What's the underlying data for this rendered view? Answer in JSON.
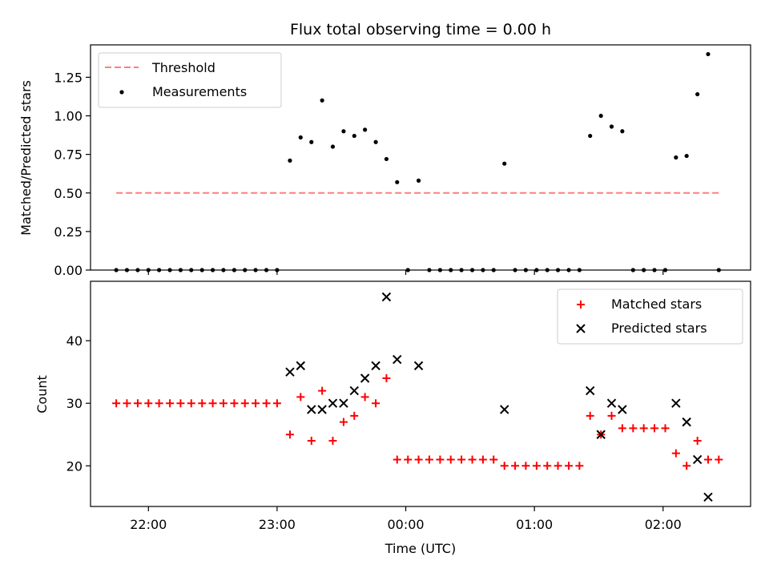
{
  "chart_data": [
    {
      "type": "scatter",
      "title": "Flux total observing time = 0.00 h",
      "xlabel": "",
      "ylabel": "Matched/Predicted stars",
      "xlim_hours": [
        21.55,
        26.68
      ],
      "ylim": [
        0,
        1.46
      ],
      "yticks": [
        0.0,
        0.25,
        0.5,
        0.75,
        1.0,
        1.25
      ],
      "ytick_labels": [
        "0.00",
        "0.25",
        "0.50",
        "0.75",
        "1.00",
        "1.25"
      ],
      "grid": false,
      "legend_position": "top-left",
      "series": [
        {
          "name": "Threshold",
          "kind": "dashed-line",
          "color": "#ff7f7f",
          "x": [
            21.75,
            26.45
          ],
          "y": [
            0.5,
            0.5
          ]
        },
        {
          "name": "Measurements",
          "kind": "points",
          "color": "#000000",
          "x": [
            21.75,
            21.833,
            21.917,
            22.0,
            22.083,
            22.167,
            22.25,
            22.333,
            22.417,
            22.5,
            22.583,
            22.667,
            22.75,
            22.833,
            22.917,
            23.0,
            23.1,
            23.183,
            23.267,
            23.35,
            23.433,
            23.517,
            23.6,
            23.683,
            23.767,
            23.85,
            23.933,
            24.017,
            24.1,
            24.183,
            24.267,
            24.35,
            24.433,
            24.517,
            24.6,
            24.683,
            24.767,
            24.85,
            24.933,
            25.017,
            25.1,
            25.183,
            25.267,
            25.35,
            25.433,
            25.517,
            25.6,
            25.683,
            25.767,
            25.85,
            25.933,
            26.017,
            26.1,
            26.183,
            26.267,
            26.35,
            26.433
          ],
          "y": [
            0,
            0,
            0,
            0,
            0,
            0,
            0,
            0,
            0,
            0,
            0,
            0,
            0,
            0,
            0,
            0,
            0.71,
            0.86,
            0.83,
            1.1,
            0.8,
            0.9,
            0.87,
            0.91,
            0.83,
            0.72,
            0.57,
            0,
            0.58,
            0,
            0,
            0,
            0,
            0,
            0,
            0,
            0.69,
            0,
            0,
            0,
            0,
            0,
            0,
            0,
            0.87,
            1.0,
            0.93,
            0.9,
            0,
            0,
            0,
            0,
            0.73,
            0.74,
            1.14,
            1.4,
            0
          ]
        }
      ]
    },
    {
      "type": "scatter",
      "title": "",
      "xlabel": "Time (UTC)",
      "ylabel": "Count",
      "xlim_hours": [
        21.55,
        26.68
      ],
      "ylim": [
        13.5,
        49.5
      ],
      "yticks": [
        20,
        30,
        40
      ],
      "ytick_labels": [
        "20",
        "30",
        "40"
      ],
      "xticks_hours": [
        22,
        23,
        24,
        25,
        26
      ],
      "xtick_labels": [
        "22:00",
        "23:00",
        "00:00",
        "01:00",
        "02:00"
      ],
      "grid": false,
      "legend_position": "top-right",
      "series": [
        {
          "name": "Matched stars",
          "marker": "plus",
          "color": "#ff0000",
          "x": [
            21.75,
            21.833,
            21.917,
            22.0,
            22.083,
            22.167,
            22.25,
            22.333,
            22.417,
            22.5,
            22.583,
            22.667,
            22.75,
            22.833,
            22.917,
            23.0,
            23.1,
            23.183,
            23.267,
            23.35,
            23.433,
            23.517,
            23.6,
            23.683,
            23.767,
            23.85,
            23.933,
            24.017,
            24.1,
            24.183,
            24.267,
            24.35,
            24.433,
            24.517,
            24.6,
            24.683,
            24.767,
            24.85,
            24.933,
            25.017,
            25.1,
            25.183,
            25.267,
            25.35,
            25.433,
            25.517,
            25.6,
            25.683,
            25.767,
            25.85,
            25.933,
            26.017,
            26.1,
            26.183,
            26.267,
            26.35,
            26.433
          ],
          "y": [
            30,
            30,
            30,
            30,
            30,
            30,
            30,
            30,
            30,
            30,
            30,
            30,
            30,
            30,
            30,
            30,
            25,
            31,
            24,
            32,
            24,
            27,
            28,
            31,
            30,
            34,
            21,
            21,
            21,
            21,
            21,
            21,
            21,
            21,
            21,
            21,
            20,
            20,
            20,
            20,
            20,
            20,
            20,
            20,
            28,
            25,
            28,
            26,
            26,
            26,
            26,
            26,
            22,
            20,
            24,
            21,
            21
          ]
        },
        {
          "name": "Predicted stars",
          "marker": "x",
          "color": "#000000",
          "x": [
            23.1,
            23.183,
            23.267,
            23.35,
            23.433,
            23.517,
            23.6,
            23.683,
            23.767,
            23.85,
            23.933,
            24.1,
            24.767,
            25.433,
            25.517,
            25.6,
            25.683,
            26.1,
            26.183,
            26.267,
            26.35
          ],
          "y": [
            35,
            36,
            29,
            29,
            30,
            30,
            32,
            34,
            36,
            47,
            37,
            36,
            29,
            32,
            25,
            30,
            29,
            30,
            27,
            21,
            15
          ]
        }
      ]
    }
  ]
}
